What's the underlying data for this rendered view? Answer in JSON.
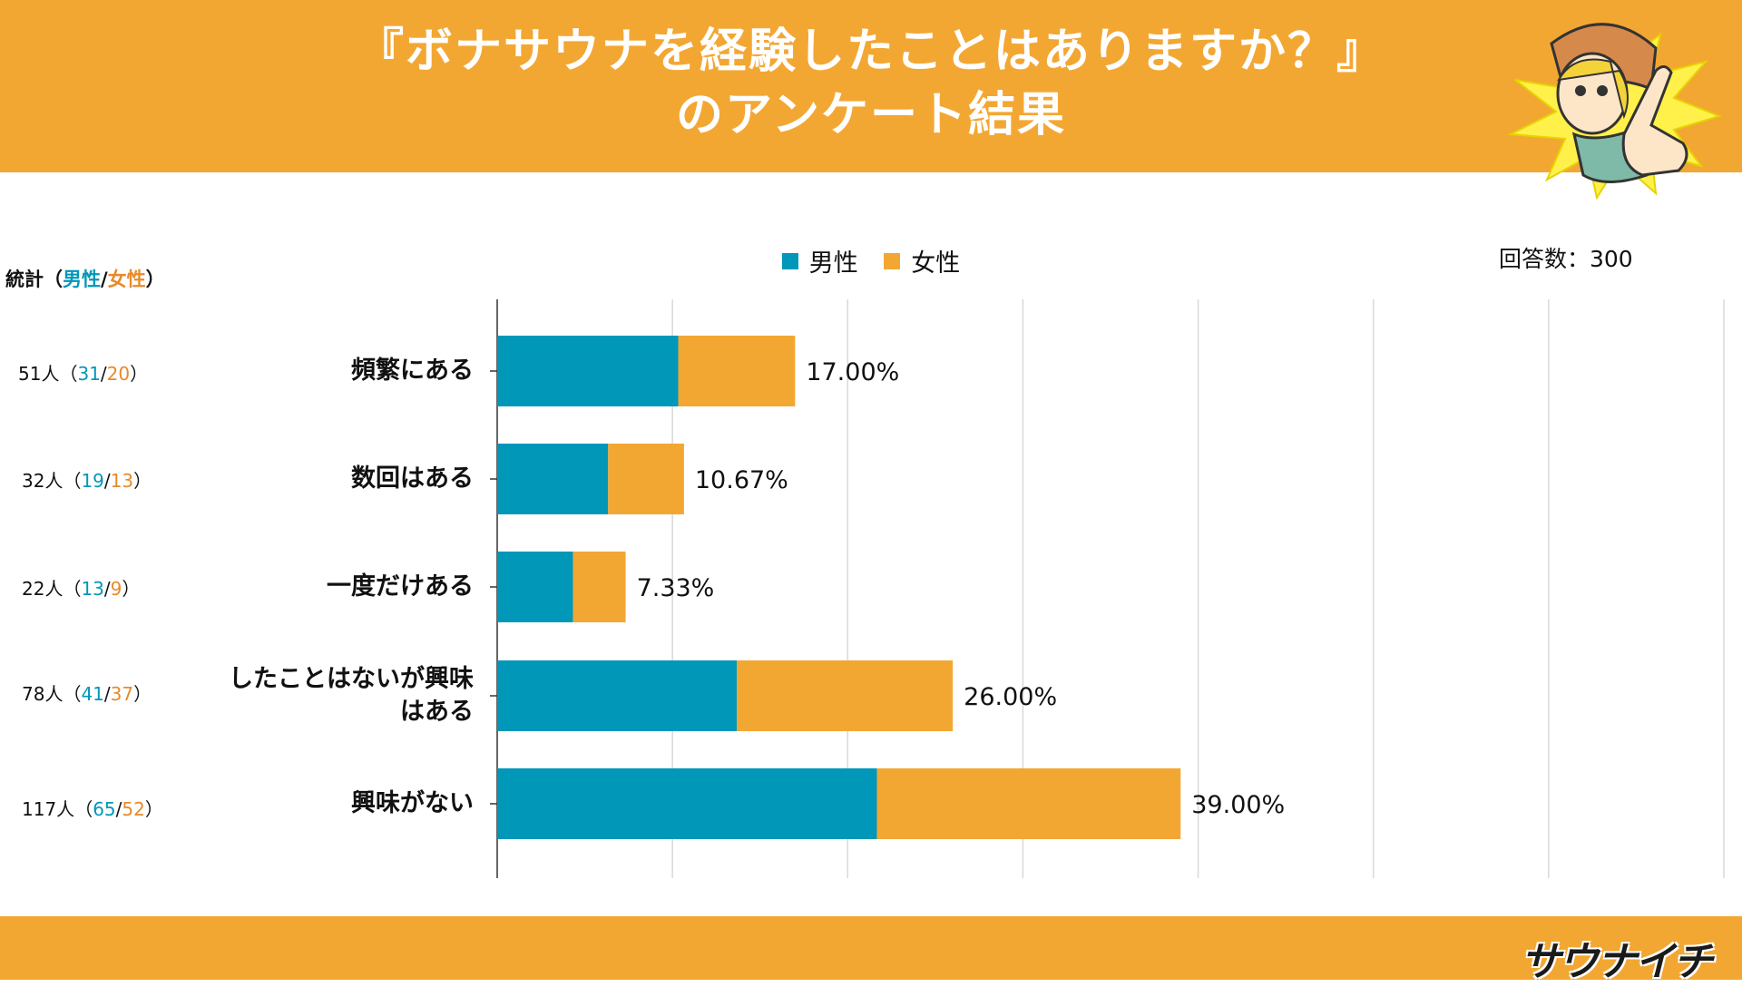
{
  "header": {
    "title_line1": "『ボナサウナを経験したことはありますか？』",
    "title_line2": "のアンケート結果"
  },
  "legend": {
    "male": "男性",
    "female": "女性"
  },
  "respondents": "回答数：300",
  "stats": {
    "title_prefix": "統計（",
    "title_male": "男性",
    "title_sep": "/",
    "title_female": "女性",
    "title_suffix": "）",
    "rows": [
      {
        "total": "51人",
        "male": "31",
        "female": "20"
      },
      {
        "total": "32人",
        "male": "19",
        "female": "13"
      },
      {
        "total": "22人",
        "male": "13",
        "female": "9"
      },
      {
        "total": "78人",
        "male": "41",
        "female": "37"
      },
      {
        "total": "117人",
        "male": "65",
        "female": "52"
      }
    ]
  },
  "logo": "サウナイチ",
  "colors": {
    "male": "#0197b9",
    "female": "#f3a733",
    "grid": "#d9d9d9"
  },
  "chart_data": {
    "type": "bar",
    "orientation": "horizontal",
    "stacked": true,
    "categories": [
      [
        "頻繁にある"
      ],
      [
        "数回はある"
      ],
      [
        "一度だけある"
      ],
      [
        "したことはないが興味",
        "はある"
      ],
      [
        "興味がない"
      ]
    ],
    "series": [
      {
        "name": "男性",
        "values": [
          10.33,
          6.33,
          4.33,
          13.67,
          21.67
        ]
      },
      {
        "name": "女性",
        "values": [
          6.67,
          4.33,
          3.0,
          12.33,
          17.33
        ]
      }
    ],
    "data_labels": [
      "17.00%",
      "10.67%",
      "7.33%",
      "26.00%",
      "39.00%"
    ],
    "xlim": [
      0,
      70
    ],
    "grid_step": 10,
    "grid": true,
    "legend": "top-center"
  }
}
